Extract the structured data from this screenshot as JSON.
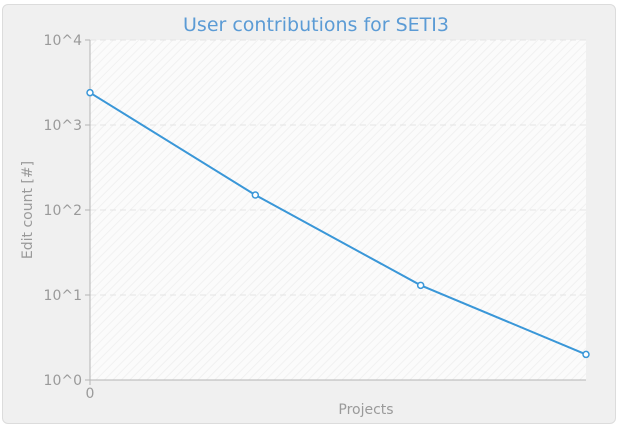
{
  "chart_data": {
    "type": "line",
    "title": "User contributions for SETI3",
    "xlabel": "Projects",
    "ylabel": "Edit count [#]",
    "y_scale": "log",
    "ylim": [
      1,
      10000
    ],
    "y_ticks": [
      "10^0",
      "10^1",
      "10^2",
      "10^3",
      "10^4"
    ],
    "x_ticks": [
      "0"
    ],
    "grid": true,
    "series": [
      {
        "color": "#3a97d8",
        "points": [
          {
            "x": 0,
            "y": 2400
          },
          {
            "x": 1,
            "y": 150
          },
          {
            "x": 2,
            "y": 13
          },
          {
            "x": 3,
            "y": 2
          }
        ]
      }
    ]
  }
}
